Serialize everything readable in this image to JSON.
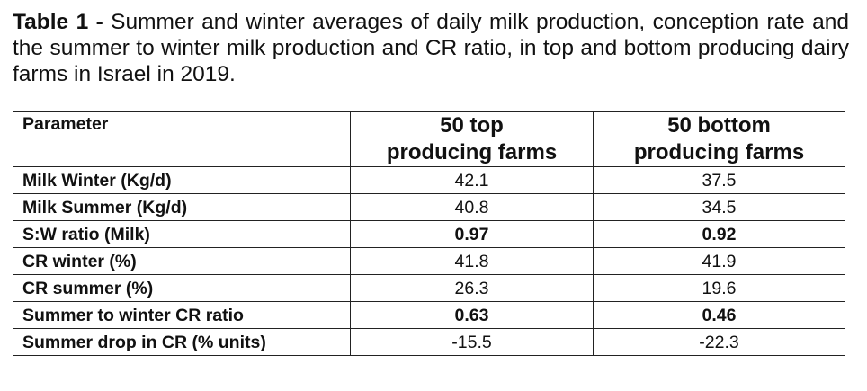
{
  "caption": {
    "label": "Table 1 -",
    "text": " Summer and winter averages of daily milk production, conception rate and the summer to winter milk production and CR ratio, in top and bottom producing dairy farms in Israel in 2019."
  },
  "table": {
    "headers": {
      "parameter": "Parameter",
      "top_line1": "50 top",
      "top_line2": "producing farms",
      "bottom_line1": "50 bottom",
      "bottom_line2": "producing farms"
    },
    "rows": [
      {
        "parameter": "Milk Winter (Kg/d)",
        "top": "42.1",
        "bottom": "37.5",
        "bold": false
      },
      {
        "parameter": "Milk Summer (Kg/d)",
        "top": "40.8",
        "bottom": "34.5",
        "bold": false
      },
      {
        "parameter": "S:W ratio (Milk)",
        "top": "0.97",
        "bottom": "0.92",
        "bold": true
      },
      {
        "parameter": "CR winter (%)",
        "top": "41.8",
        "bottom": "41.9",
        "bold": false
      },
      {
        "parameter": "CR summer (%)",
        "top": "26.3",
        "bottom": "19.6",
        "bold": false
      },
      {
        "parameter": "Summer to winter CR ratio",
        "top": "0.63",
        "bottom": "0.46",
        "bold": true
      },
      {
        "parameter": "Summer drop in CR (% units)",
        "top": "-15.5",
        "bottom": "-22.3",
        "bold": false
      }
    ]
  }
}
